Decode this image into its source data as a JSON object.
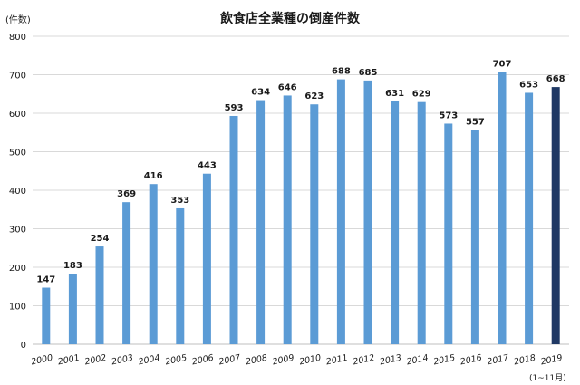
{
  "chart_data": {
    "type": "bar",
    "title": "飲食店全業種の倒産件数",
    "ylabel": "(件数)",
    "xlabel": "",
    "ylim": [
      0,
      800
    ],
    "yticks": [
      0,
      100,
      200,
      300,
      400,
      500,
      600,
      700,
      800
    ],
    "grid": true,
    "categories": [
      "2000",
      "2001",
      "2002",
      "2003",
      "2004",
      "2005",
      "2006",
      "2007",
      "2008",
      "2009",
      "2010",
      "2011",
      "2012",
      "2013",
      "2014",
      "2015",
      "2016",
      "2017",
      "2018",
      "2019"
    ],
    "values": [
      147,
      183,
      254,
      369,
      416,
      353,
      443,
      593,
      634,
      646,
      623,
      688,
      685,
      631,
      629,
      573,
      557,
      707,
      653,
      668
    ],
    "data_labels": [
      "147",
      "183",
      "254",
      "369",
      "416",
      "353",
      "443",
      "593",
      "634",
      "646",
      "623",
      "688",
      "685",
      "631",
      "629",
      "573",
      "557",
      "707",
      "653",
      "668"
    ],
    "note": "(1~11月)",
    "bar_color": "#5b9bd5",
    "highlight_color": "#1f3864",
    "highlight_index": 19
  }
}
